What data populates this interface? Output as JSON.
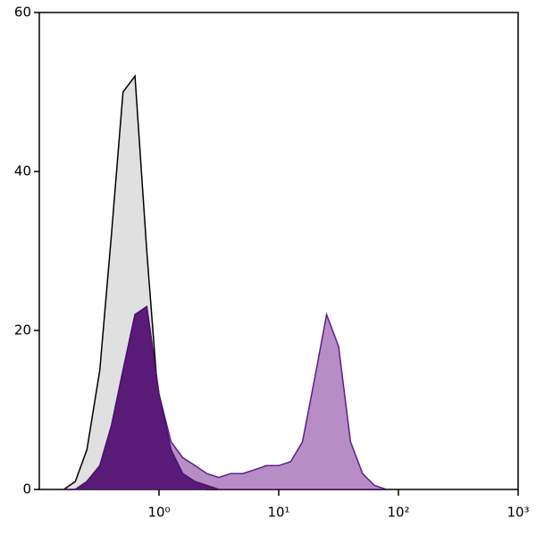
{
  "chart_data": {
    "type": "histogram-overlay",
    "x": [
      0.16,
      0.2,
      0.25,
      0.32,
      0.4,
      0.5,
      0.63,
      0.79,
      1,
      1.26,
      1.58,
      2,
      2.51,
      3.16,
      3.98,
      5.01,
      6.31,
      7.94,
      10,
      12.6,
      15.8,
      20,
      25.1,
      31.6,
      39.8,
      50.1,
      63.1,
      79.4
    ],
    "series": [
      {
        "color": "#e0e0e0",
        "stroke": "#000000",
        "values": [
          0,
          1,
          5,
          15,
          32,
          50,
          52,
          30,
          10,
          3,
          1,
          0.5,
          0,
          0,
          0,
          0,
          0,
          0,
          0,
          0,
          0,
          0,
          0,
          0,
          0,
          0,
          0,
          0
        ]
      },
      {
        "color": "#b88dc6",
        "stroke": "#5b1e8c",
        "values": [
          0,
          0,
          1,
          3,
          8,
          15,
          22,
          23,
          12,
          6,
          4,
          3,
          2,
          1.5,
          2,
          2,
          2.5,
          3,
          3,
          3.5,
          6,
          14,
          22,
          18,
          6,
          2,
          0.5,
          0
        ]
      },
      {
        "color": "#5a1a78",
        "stroke": "#4a1070",
        "values": [
          0,
          0,
          1,
          3,
          8,
          15,
          22,
          23,
          12,
          5,
          2,
          1,
          0.5,
          0,
          0,
          0,
          0,
          0,
          0,
          0,
          0,
          0,
          0,
          0,
          0,
          0,
          0,
          0
        ]
      }
    ],
    "log_x": true,
    "xlim": [
      0.1,
      1000
    ],
    "xticks": [
      {
        "value": 1,
        "label": "10⁰"
      },
      {
        "value": 10,
        "label": "10¹"
      },
      {
        "value": 100,
        "label": "10²"
      },
      {
        "value": 1000,
        "label": "10³"
      }
    ],
    "ylim": [
      0,
      60
    ],
    "yticks": [
      0,
      20,
      40,
      60
    ]
  }
}
